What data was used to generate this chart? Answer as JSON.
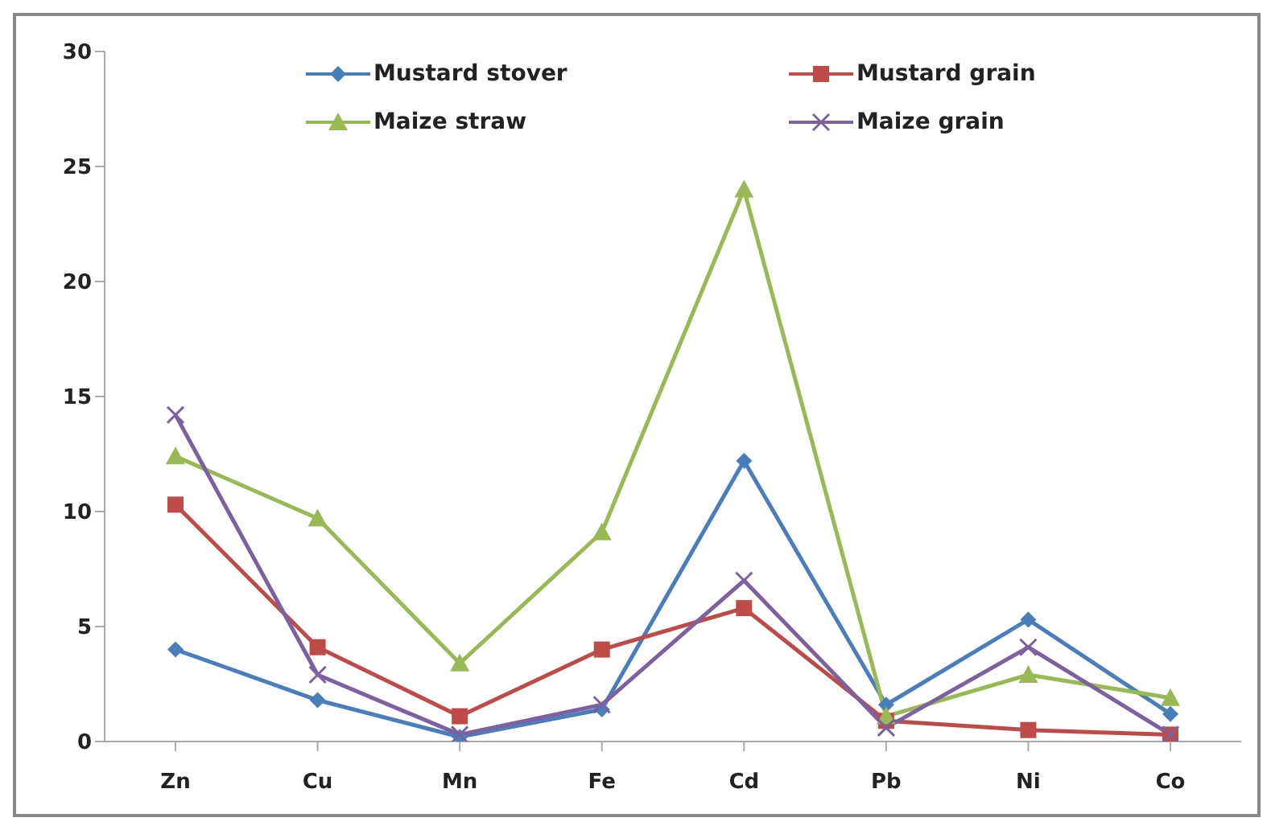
{
  "chart_data": {
    "type": "line",
    "categories": [
      "Zn",
      "Cu",
      "Mn",
      "Fe",
      "Cd",
      "Pb",
      "Ni",
      "Co"
    ],
    "series": [
      {
        "name": "Mustard stover",
        "color": "#4a7ebb",
        "marker": "diamond",
        "values": [
          4.0,
          1.8,
          0.2,
          1.4,
          12.2,
          1.6,
          5.3,
          1.2
        ]
      },
      {
        "name": "Mustard grain",
        "color": "#be4b48",
        "marker": "square",
        "values": [
          10.3,
          4.1,
          1.1,
          4.0,
          5.8,
          0.9,
          0.5,
          0.3
        ]
      },
      {
        "name": "Maize straw",
        "color": "#98b954",
        "marker": "triangle",
        "values": [
          12.4,
          9.7,
          3.4,
          9.1,
          24.0,
          1.1,
          2.9,
          1.9
        ]
      },
      {
        "name": "Maize grain",
        "color": "#7d60a0",
        "marker": "cross",
        "values": [
          14.2,
          2.9,
          0.3,
          1.6,
          7.0,
          0.6,
          4.1,
          0.3
        ]
      }
    ],
    "ylim": [
      0,
      30
    ],
    "yticks": [
      0,
      5,
      10,
      15,
      20,
      25,
      30
    ],
    "legend": "top",
    "line_style": "solid"
  }
}
